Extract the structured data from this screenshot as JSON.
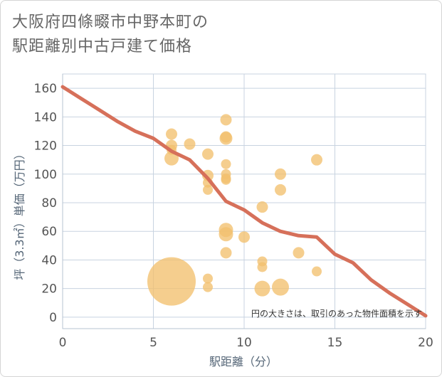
{
  "title": {
    "line1": "大阪府四條畷市中野本町の",
    "line2": "駅距離別中古戸建て価格"
  },
  "chart_data": {
    "type": "scatter",
    "xlabel": "駅距離（分）",
    "ylabel": "坪（3.3㎡）単価（万円）",
    "xlim": [
      0,
      20
    ],
    "ylim": [
      -8,
      170
    ],
    "x_ticks": [
      0,
      5,
      10,
      15,
      20
    ],
    "y_ticks": [
      0,
      20,
      40,
      60,
      80,
      100,
      120,
      140,
      160
    ],
    "grid": true,
    "note": "円の大きさは、取引のあった物件面積を示す",
    "colors": {
      "bubble": "#f2c06e",
      "line": "#d6705a",
      "grid": "#c8d3e0"
    },
    "bubbles": [
      {
        "x": 6,
        "y": 25,
        "r": 34
      },
      {
        "x": 6,
        "y": 128,
        "r": 8
      },
      {
        "x": 6,
        "y": 120,
        "r": 8
      },
      {
        "x": 6,
        "y": 117,
        "r": 7
      },
      {
        "x": 6,
        "y": 111,
        "r": 10
      },
      {
        "x": 7,
        "y": 121,
        "r": 8
      },
      {
        "x": 8,
        "y": 114,
        "r": 8
      },
      {
        "x": 8,
        "y": 99,
        "r": 8
      },
      {
        "x": 8,
        "y": 94,
        "r": 7
      },
      {
        "x": 8,
        "y": 89,
        "r": 7
      },
      {
        "x": 8,
        "y": 27,
        "r": 7
      },
      {
        "x": 8,
        "y": 21,
        "r": 7
      },
      {
        "x": 9,
        "y": 138,
        "r": 8
      },
      {
        "x": 9,
        "y": 126,
        "r": 8
      },
      {
        "x": 9,
        "y": 125,
        "r": 9
      },
      {
        "x": 9,
        "y": 107,
        "r": 7
      },
      {
        "x": 9,
        "y": 100,
        "r": 7
      },
      {
        "x": 9,
        "y": 97,
        "r": 7
      },
      {
        "x": 9,
        "y": 96,
        "r": 7
      },
      {
        "x": 9,
        "y": 61,
        "r": 10
      },
      {
        "x": 9,
        "y": 58,
        "r": 10
      },
      {
        "x": 9,
        "y": 45,
        "r": 8
      },
      {
        "x": 10,
        "y": 56,
        "r": 8
      },
      {
        "x": 11,
        "y": 77,
        "r": 8
      },
      {
        "x": 11,
        "y": 39,
        "r": 7
      },
      {
        "x": 11,
        "y": 35,
        "r": 7
      },
      {
        "x": 11,
        "y": 20,
        "r": 11
      },
      {
        "x": 12,
        "y": 100,
        "r": 8
      },
      {
        "x": 12,
        "y": 89,
        "r": 8
      },
      {
        "x": 12,
        "y": 21,
        "r": 12
      },
      {
        "x": 13,
        "y": 45,
        "r": 8
      },
      {
        "x": 14,
        "y": 110,
        "r": 8
      },
      {
        "x": 14,
        "y": 32,
        "r": 7
      }
    ],
    "trend_line": [
      {
        "x": 0,
        "y": 161
      },
      {
        "x": 1,
        "y": 153
      },
      {
        "x": 2,
        "y": 145
      },
      {
        "x": 3,
        "y": 137
      },
      {
        "x": 4,
        "y": 130
      },
      {
        "x": 5,
        "y": 125
      },
      {
        "x": 6,
        "y": 116
      },
      {
        "x": 7,
        "y": 110
      },
      {
        "x": 8,
        "y": 97
      },
      {
        "x": 9,
        "y": 81
      },
      {
        "x": 10,
        "y": 75
      },
      {
        "x": 11,
        "y": 66
      },
      {
        "x": 12,
        "y": 60
      },
      {
        "x": 13,
        "y": 57
      },
      {
        "x": 14,
        "y": 56
      },
      {
        "x": 15,
        "y": 44
      },
      {
        "x": 16,
        "y": 38
      },
      {
        "x": 17,
        "y": 26
      },
      {
        "x": 18,
        "y": 17
      },
      {
        "x": 19,
        "y": 9
      },
      {
        "x": 20,
        "y": 1
      }
    ]
  }
}
